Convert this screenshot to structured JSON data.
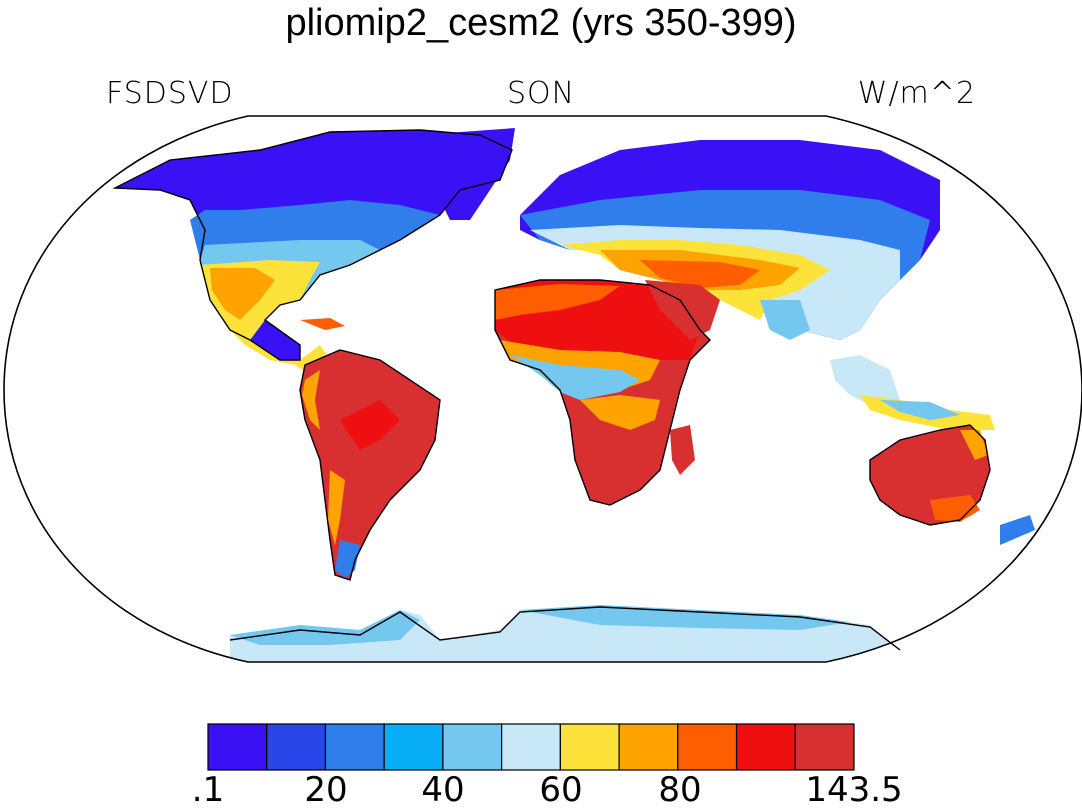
{
  "title": "pliomip2_cesm2 (yrs 350-399)",
  "variable": "FSDSVD",
  "season": "SON",
  "units": "W/m^2",
  "colorbar": {
    "colors": [
      "#3a10f5",
      "#2a45ea",
      "#2f7eec",
      "#08aef5",
      "#74c7ef",
      "#c9e8f7",
      "#fde23a",
      "#fea300",
      "#ff5e00",
      "#ee1010",
      "#d83030"
    ],
    "tick_labels": [
      ".1",
      "20",
      "40",
      "60",
      "80",
      "143.5"
    ]
  },
  "colors": {
    "ocean": "#ffffff",
    "coastline": "#000000",
    "frame": "#000000"
  }
}
